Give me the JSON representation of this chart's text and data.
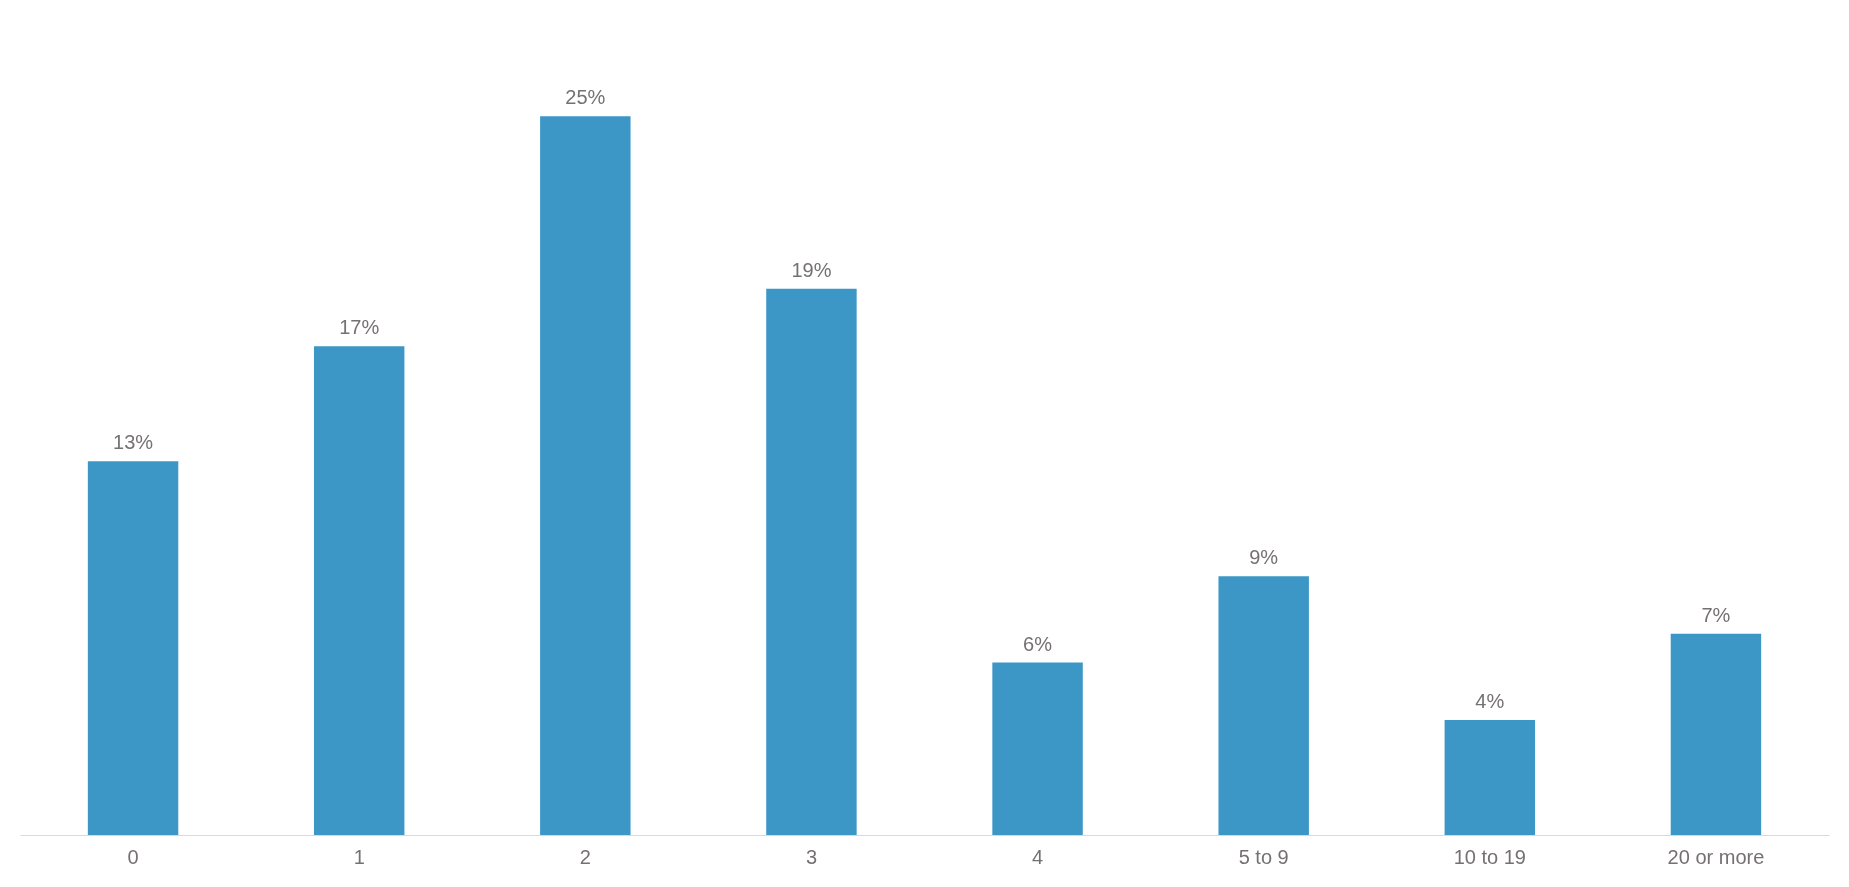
{
  "chart_data": {
    "type": "bar",
    "categories": [
      "0",
      "1",
      "2",
      "3",
      "4",
      "5 to 9",
      "10 to 19",
      "20 or more"
    ],
    "values": [
      13,
      17,
      25,
      19,
      6,
      9,
      4,
      7
    ],
    "value_labels": [
      "13%",
      "17%",
      "25%",
      "19%",
      "6%",
      "9%",
      "4%",
      "7%"
    ],
    "color": "#3c97c6",
    "grid": false,
    "tick_labels": "x"
  }
}
